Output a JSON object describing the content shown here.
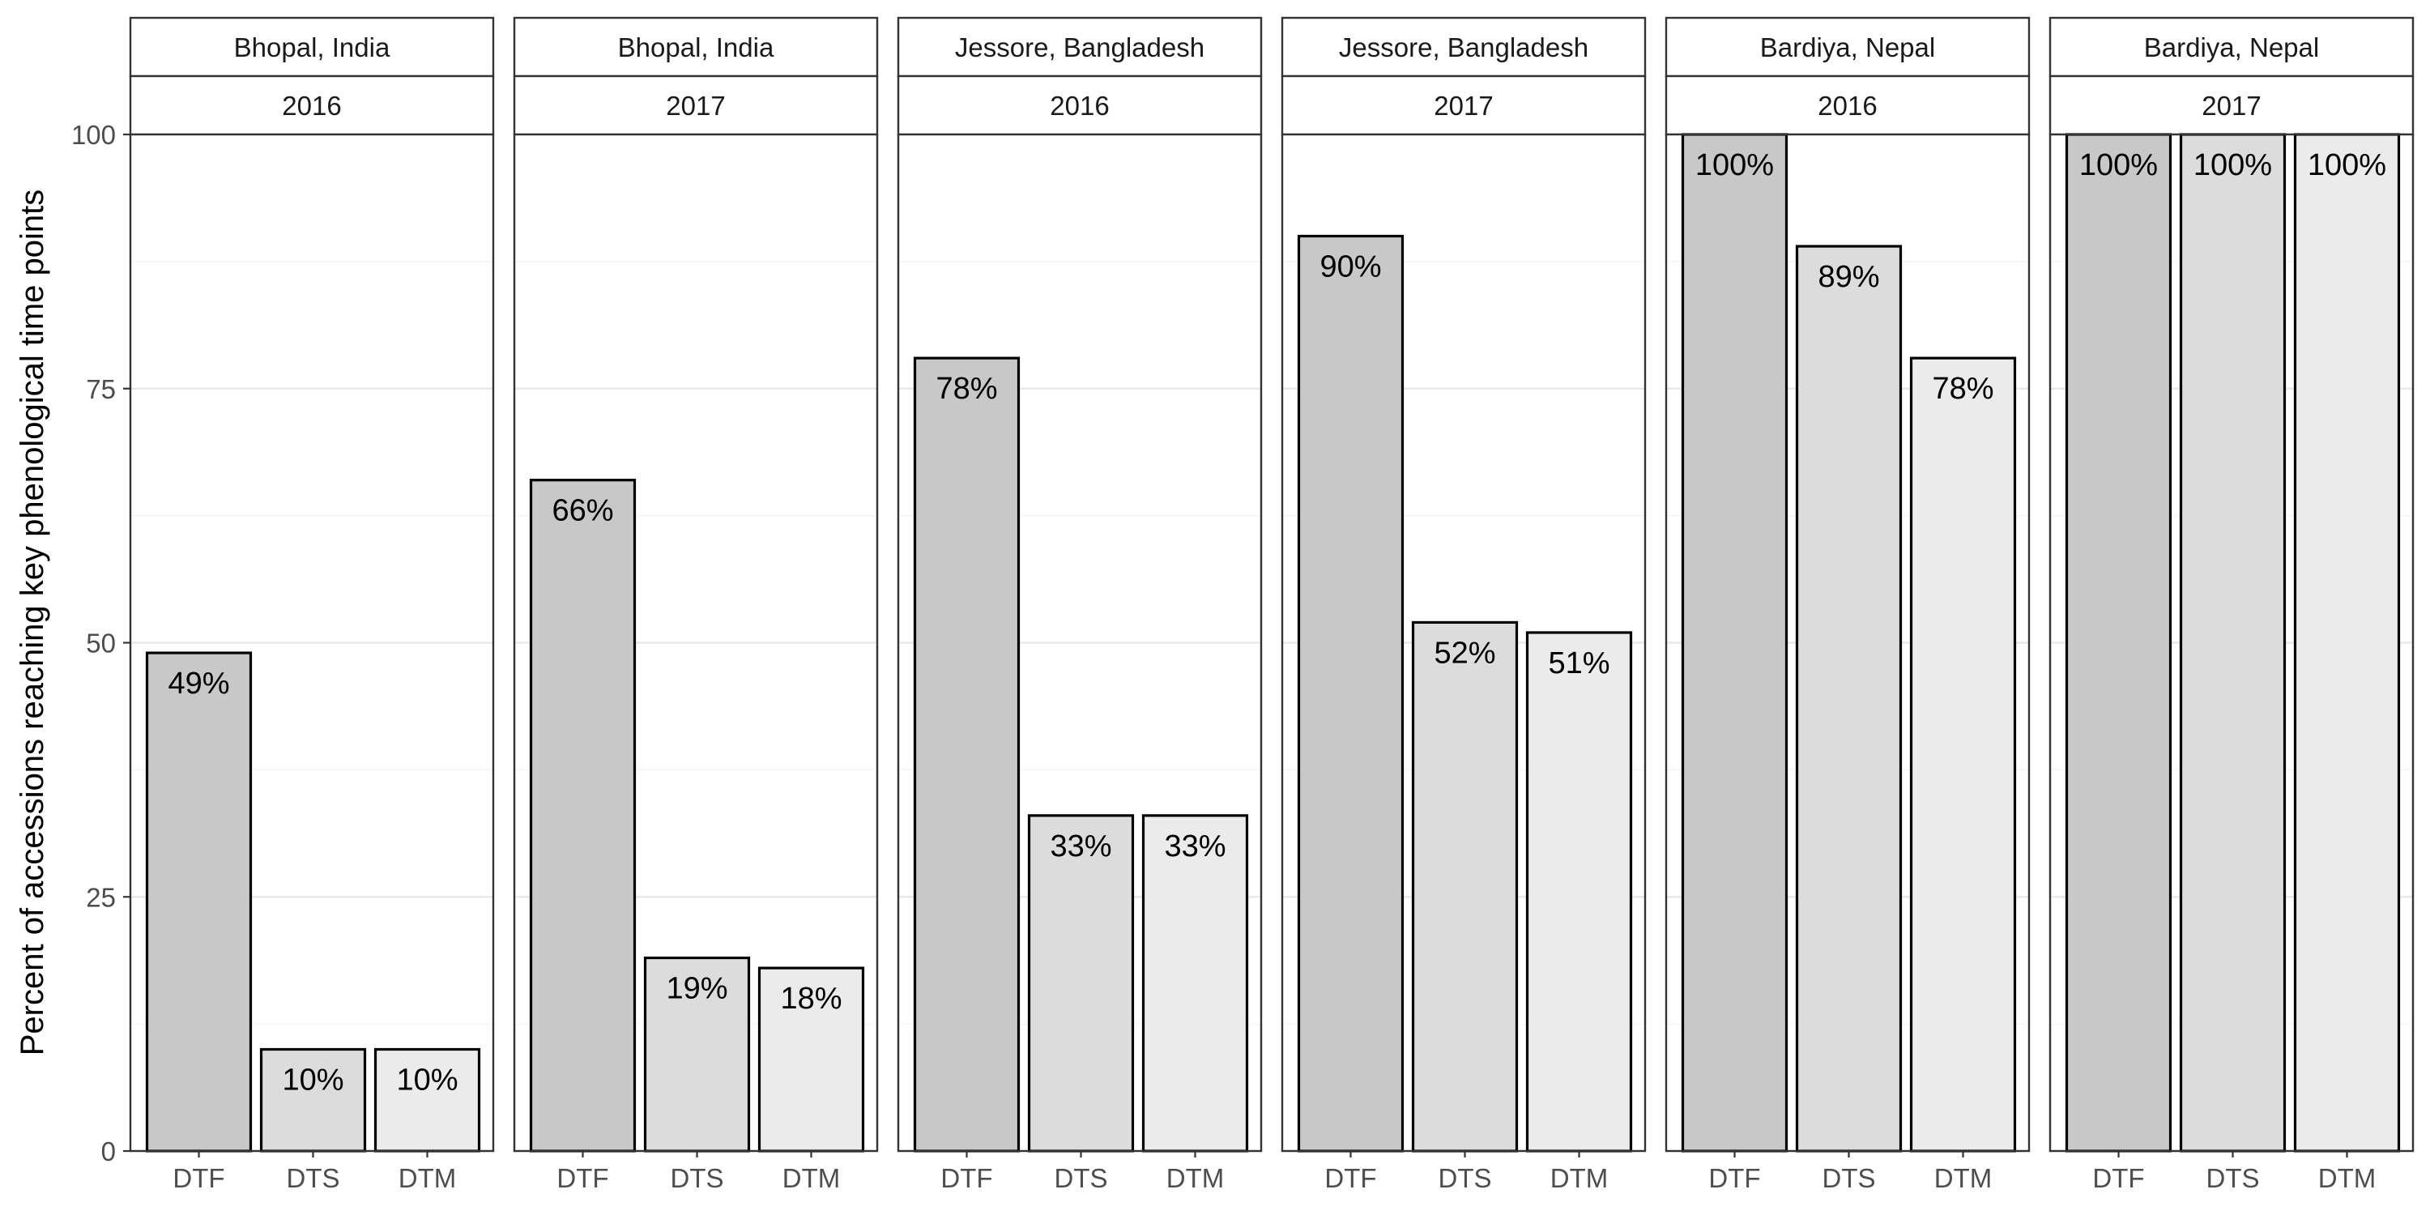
{
  "chart_data": {
    "type": "bar",
    "facet_layout": "1 row, facets side by side, two-level strip labels (location over year)",
    "ylabel": "Percent of accessions reaching key phenological time points",
    "xlabel": "",
    "ylim": [
      0,
      100
    ],
    "y_ticks": [
      0,
      25,
      50,
      75,
      100
    ],
    "grid": true,
    "categories": [
      "DTF",
      "DTS",
      "DTM"
    ],
    "bar_colors": [
      "#c8c8c8",
      "#dcdcdc",
      "#ebebeb"
    ],
    "facets": [
      {
        "location": "Bhopal, India",
        "year": "2016",
        "values": [
          49,
          10,
          10
        ],
        "labels": [
          "49%",
          "10%",
          "10%"
        ]
      },
      {
        "location": "Bhopal, India",
        "year": "2017",
        "values": [
          66,
          19,
          18
        ],
        "labels": [
          "66%",
          "19%",
          "18%"
        ]
      },
      {
        "location": "Jessore, Bangladesh",
        "year": "2016",
        "values": [
          78,
          33,
          33
        ],
        "labels": [
          "78%",
          "33%",
          "33%"
        ]
      },
      {
        "location": "Jessore, Bangladesh",
        "year": "2017",
        "values": [
          90,
          52,
          51
        ],
        "labels": [
          "90%",
          "52%",
          "51%"
        ]
      },
      {
        "location": "Bardiya, Nepal",
        "year": "2016",
        "values": [
          100,
          89,
          78
        ],
        "labels": [
          "100%",
          "89%",
          "78%"
        ]
      },
      {
        "location": "Bardiya, Nepal",
        "year": "2017",
        "values": [
          100,
          100,
          100
        ],
        "labels": [
          "100%",
          "100%",
          "100%"
        ]
      }
    ]
  }
}
